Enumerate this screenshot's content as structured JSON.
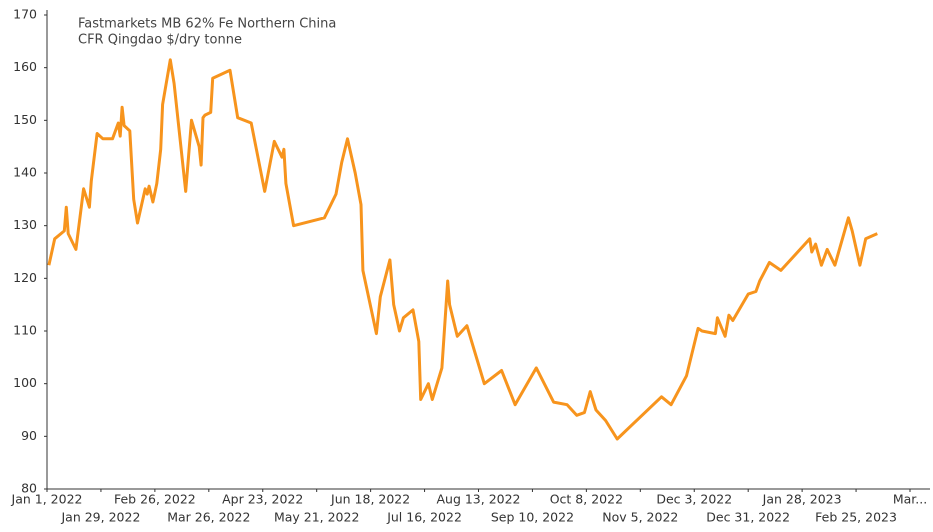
{
  "chart_data": {
    "type": "line",
    "title": "Fastmarkets MB 62% Fe Northern China",
    "subtitle": "CFR Qingdao $/dry tonne",
    "x": [
      "2022-01-02",
      "2022-01-05",
      "2022-01-10",
      "2022-01-11",
      "2022-01-12",
      "2022-01-16",
      "2022-01-20",
      "2022-01-23",
      "2022-01-24",
      "2022-01-27",
      "2022-01-30",
      "2022-02-04",
      "2022-02-07",
      "2022-02-08",
      "2022-02-09",
      "2022-02-10",
      "2022-02-13",
      "2022-02-15",
      "2022-02-17",
      "2022-02-21",
      "2022-02-22",
      "2022-02-23",
      "2022-02-25",
      "2022-02-27",
      "2022-03-01",
      "2022-03-02",
      "2022-03-06",
      "2022-03-08",
      "2022-03-14",
      "2022-03-17",
      "2022-03-21",
      "2022-03-22",
      "2022-03-23",
      "2022-03-24",
      "2022-03-27",
      "2022-03-28",
      "2022-04-06",
      "2022-04-10",
      "2022-04-17",
      "2022-04-24",
      "2022-04-29",
      "2022-05-03",
      "2022-05-04",
      "2022-05-05",
      "2022-05-09",
      "2022-05-25",
      "2022-05-31",
      "2022-06-03",
      "2022-06-06",
      "2022-06-10",
      "2022-06-13",
      "2022-06-14",
      "2022-06-21",
      "2022-06-23",
      "2022-06-28",
      "2022-06-30",
      "2022-07-03",
      "2022-07-05",
      "2022-07-10",
      "2022-07-13",
      "2022-07-14",
      "2022-07-18",
      "2022-07-20",
      "2022-07-25",
      "2022-07-28",
      "2022-07-29",
      "2022-08-02",
      "2022-08-07",
      "2022-08-16",
      "2022-08-25",
      "2022-09-01",
      "2022-09-12",
      "2022-09-21",
      "2022-09-28",
      "2022-10-03",
      "2022-10-07",
      "2022-10-10",
      "2022-10-13",
      "2022-10-18",
      "2022-10-24",
      "2022-11-16",
      "2022-11-21",
      "2022-11-29",
      "2022-12-05",
      "2022-12-07",
      "2022-12-14",
      "2022-12-15",
      "2022-12-19",
      "2022-12-21",
      "2022-12-23",
      "2022-12-31",
      "2023-01-04",
      "2023-01-06",
      "2023-01-11",
      "2023-01-17",
      "2023-02-01",
      "2023-02-02",
      "2023-02-04",
      "2023-02-07",
      "2023-02-10",
      "2023-02-14",
      "2023-02-21",
      "2023-02-23",
      "2023-02-27",
      "2023-03-02",
      "2023-03-08"
    ],
    "series": [
      {
        "name": "Fastmarkets MB 62% Fe Northern China",
        "color": "#f7941d",
        "values": [
          122.5,
          127.5,
          129,
          133.5,
          128.5,
          125.5,
          137,
          133.5,
          138.5,
          147.5,
          146.5,
          146.5,
          149.5,
          147,
          152.5,
          149,
          148,
          135,
          130.5,
          137,
          136,
          137.5,
          134.5,
          138,
          144.5,
          153,
          161.5,
          157,
          136.5,
          150,
          145,
          141.5,
          150.5,
          151,
          151.5,
          158,
          159.5,
          150.5,
          149.5,
          136.5,
          146,
          143,
          144.5,
          138,
          130,
          131.5,
          136,
          142,
          146.5,
          140,
          134,
          121.5,
          109.5,
          116.5,
          123.5,
          115,
          110,
          112.5,
          114,
          108,
          97,
          100,
          97,
          103,
          119.5,
          115,
          109,
          111,
          100,
          102.5,
          96,
          103,
          96.5,
          96,
          94,
          94.5,
          98.5,
          95,
          93,
          89.5,
          97.5,
          96,
          101.5,
          110.5,
          110,
          109.5,
          112.5,
          109,
          113,
          112,
          117,
          117.5,
          119.5,
          123,
          121.5,
          127.5,
          125,
          126.5,
          122.5,
          125.5,
          122.5,
          131.5,
          129,
          122.5,
          127.5,
          128.5
        ]
      }
    ],
    "xlim": [
      "2022-01-01",
      "2023-03-25"
    ],
    "xticks": [
      {
        "value": "2022-01-01",
        "label": "Jan 1, 2022"
      },
      {
        "value": "2022-01-29",
        "label": "Jan 29, 2022"
      },
      {
        "value": "2022-02-26",
        "label": "Feb 26, 2022"
      },
      {
        "value": "2022-03-26",
        "label": "Mar 26, 2022"
      },
      {
        "value": "2022-04-23",
        "label": "Apr 23, 2022"
      },
      {
        "value": "2022-05-21",
        "label": "May 21, 2022"
      },
      {
        "value": "2022-06-18",
        "label": "Jun 18, 2022"
      },
      {
        "value": "2022-07-16",
        "label": "Jul 16, 2022"
      },
      {
        "value": "2022-08-13",
        "label": "Aug 13, 2022"
      },
      {
        "value": "2022-09-10",
        "label": "Sep 10, 2022"
      },
      {
        "value": "2022-10-08",
        "label": "Oct 8, 2022"
      },
      {
        "value": "2022-11-05",
        "label": "Nov 5, 2022"
      },
      {
        "value": "2022-12-03",
        "label": "Dec 3, 2022"
      },
      {
        "value": "2022-12-31",
        "label": "Dec 31, 2022"
      },
      {
        "value": "2023-01-28",
        "label": "Jan 28, 2023"
      },
      {
        "value": "2023-02-25",
        "label": "Feb 25, 2023"
      },
      {
        "value": "2023-03-25",
        "label": "Mar..."
      }
    ],
    "ylim": [
      80,
      170
    ],
    "yticks": [
      80,
      90,
      100,
      110,
      120,
      130,
      140,
      150,
      160,
      170
    ],
    "grid": false
  }
}
